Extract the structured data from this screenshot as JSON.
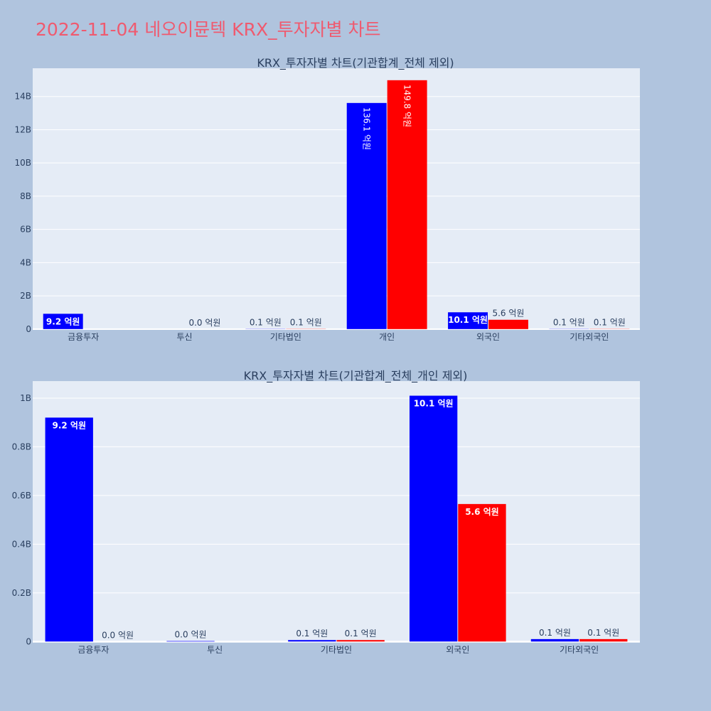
{
  "page_title": "2022-11-04 네오이뮨텍 KRX_투자자별 차트",
  "colors": {
    "background": "#b0c4de",
    "plot_bg": "#e5ecf6",
    "buy": "#0000ff",
    "sell": "#ff0000",
    "title": "#ef5a6f",
    "text": "#2a3f5f"
  },
  "chart_data": [
    {
      "type": "bar",
      "title": "KRX_투자자별 차트(기관합계_전체 제외)",
      "categories": [
        "금융투자",
        "투신",
        "기타법인",
        "개인",
        "외국인",
        "기타외국인"
      ],
      "series": [
        {
          "name": "buy",
          "color": "#0000ff",
          "values": [
            0.92,
            0.0,
            0.01,
            13.61,
            1.01,
            0.01
          ],
          "labels": [
            "9.2 억원",
            "",
            "0.1 억원",
            "136.1 억원",
            "10.1 억원",
            "0.1 억원"
          ]
        },
        {
          "name": "sell",
          "color": "#ff0000",
          "values": [
            0.0,
            0.0,
            0.01,
            14.98,
            0.56,
            0.01
          ],
          "labels": [
            "",
            "0.0 억원",
            "0.1 억원",
            "149.8 억원",
            "5.6 억원",
            "0.1 억원"
          ]
        }
      ],
      "ylim": [
        -0.05,
        15.7
      ],
      "yticks": [
        0,
        2,
        4,
        6,
        8,
        10,
        12,
        14
      ],
      "ytick_labels": [
        "0",
        "2B",
        "4B",
        "6B",
        "8B",
        "10B",
        "12B",
        "14B"
      ],
      "xlabel": "",
      "ylabel": ""
    },
    {
      "type": "bar",
      "title": "KRX_투자자별 차트(기관합계_전체_개인 제외)",
      "categories": [
        "금융투자",
        "투신",
        "기타법인",
        "외국인",
        "기타외국인"
      ],
      "series": [
        {
          "name": "buy",
          "color": "#0000ff",
          "values": [
            0.92,
            0.002,
            0.006,
            1.01,
            0.01
          ],
          "labels": [
            "9.2 억원",
            "0.0 억원",
            "0.1 억원",
            "10.1 억원",
            "0.1 억원"
          ]
        },
        {
          "name": "sell",
          "color": "#ff0000",
          "values": [
            0.0,
            0.0,
            0.006,
            0.565,
            0.01
          ],
          "labels": [
            "0.0 억원",
            "",
            "0.1 억원",
            "5.6 억원",
            "0.1 억원"
          ]
        }
      ],
      "ylim": [
        -0.005,
        1.07
      ],
      "yticks": [
        0,
        0.2,
        0.4,
        0.6,
        0.8,
        1.0
      ],
      "ytick_labels": [
        "0",
        "0.2B",
        "0.4B",
        "0.6B",
        "0.8B",
        "1B"
      ],
      "xlabel": "",
      "ylabel": ""
    }
  ]
}
